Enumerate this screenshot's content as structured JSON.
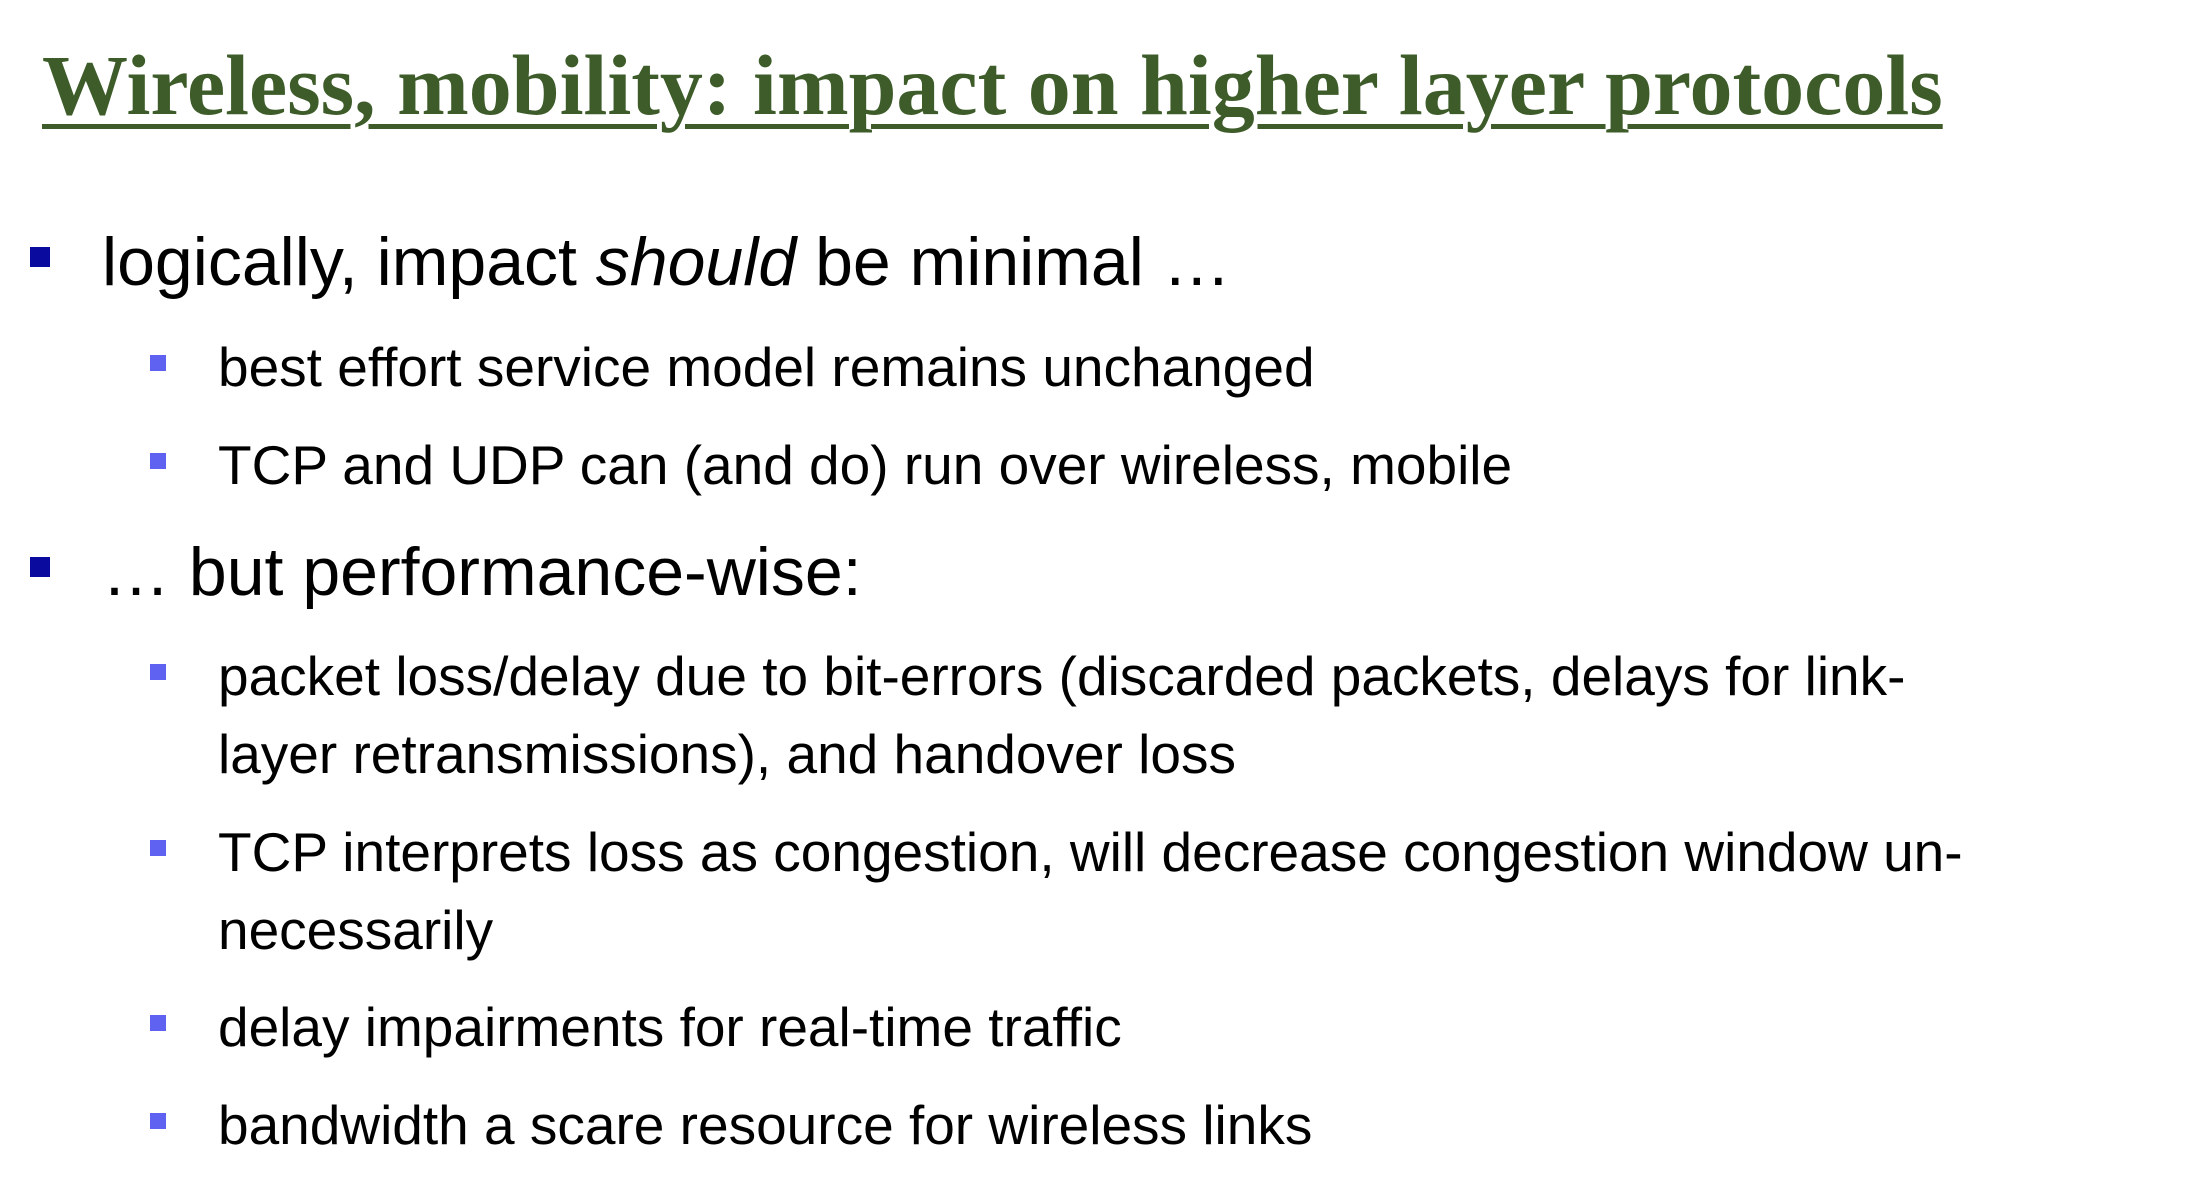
{
  "slide": {
    "title": "Wireless, mobility: impact on higher layer protocols",
    "bullets": [
      {
        "before": "logically, impact ",
        "emphasis": "should",
        "after": " be minimal …",
        "sub": [
          {
            "line1": "best effort service model remains unchanged"
          },
          {
            "line1": "TCP and UDP can (and do) run over wireless, mobile"
          }
        ]
      },
      {
        "text": "… but performance-wise:",
        "sub": [
          {
            "line1": "packet loss/delay due to bit-errors (discarded packets, delays for link-",
            "line2": "layer retransmissions), and handover loss"
          },
          {
            "line1": "TCP interprets loss as congestion, will decrease congestion window un-",
            "line2": "necessarily"
          },
          {
            "line1": "delay impairments for real-time traffic"
          },
          {
            "line1": "bandwidth a scare resource for wireless links"
          }
        ]
      }
    ]
  },
  "colors": {
    "title": "#3d5c29",
    "bullet_level1": "#0a0a9e",
    "bullet_level2": "#5f62f0",
    "text": "#000000"
  }
}
